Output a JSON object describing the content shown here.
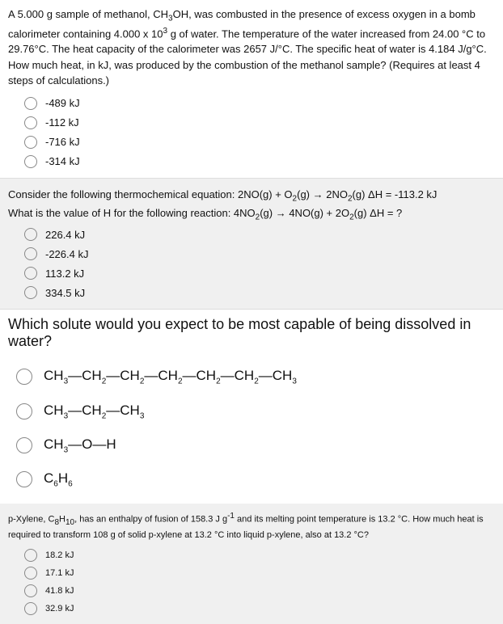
{
  "q1": {
    "text_parts": [
      "A 5.000 g sample of methanol, CH",
      "OH, was combusted in the presence of excess oxygen in a bomb calorimeter containing 4.000 x 10",
      " g of water. The temperature of the water increased from 24.00 °C to 29.76°C. The heat capacity of the calorimeter was 2657 J/°C. The specific heat of water is 4.184 J/g°C. How much heat, in kJ, was produced by the combustion of the methanol sample? (Requires at least 4 steps of calculations.)"
    ],
    "options": [
      "-489 kJ",
      "-112 kJ",
      "-716 kJ",
      "-314 kJ"
    ]
  },
  "q2": {
    "line1_prefix": "Consider the following thermochemical equation:   2NO(g) + O",
    "line1_mid": "(g) → 2NO",
    "line1_suffix": "(g)     ΔH = -113.2 kJ",
    "line2_prefix": "What is the value of H for the following reaction:    4NO",
    "line2_mid": "(g) → 4NO(g) + 2O",
    "line2_suffix": "(g)   ΔH = ?",
    "options": [
      "226.4 kJ",
      "-226.4 kJ",
      "113.2 kJ",
      "334.5 kJ"
    ]
  },
  "q3": {
    "header": "Which solute would you expect to be most capable of being dissolved in water?",
    "options": [
      {
        "type": "chain1"
      },
      {
        "type": "chain2"
      },
      {
        "type": "chain3"
      },
      {
        "type": "benzene"
      }
    ]
  },
  "q4": {
    "text_parts": [
      "p-Xylene, C",
      "H",
      ", has an enthalpy of fusion of 158.3 J g",
      " and its melting point temperature is 13.2 °C. How much heat is required to transform 108 g of solid p-xylene at 13.2 °C into liquid p-xylene, also at 13.2 °C?"
    ],
    "options": [
      "18.2 kJ",
      "17.1 kJ",
      "41.8 kJ",
      "32.9 kJ"
    ]
  }
}
